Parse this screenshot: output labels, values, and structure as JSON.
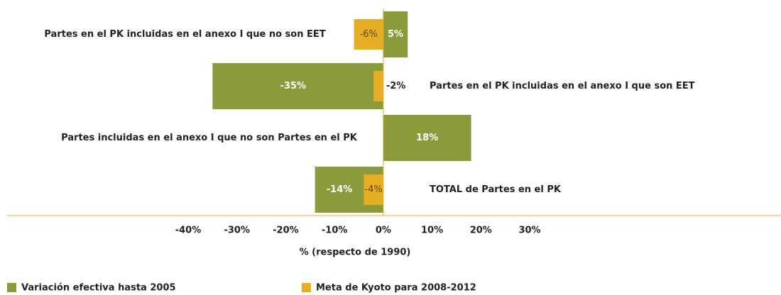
{
  "chart_data": {
    "type": "bar",
    "orientation": "horizontal",
    "x_label": "% (respecto de 1990)",
    "categories": [
      "Partes en el PK incluidas en el anexo I que no son EET",
      "Partes en el PK incluidas en el anexo I que son EET",
      "Partes incluidas en el anexo I que no son Partes en el PK",
      "TOTAL de Partes en el PK"
    ],
    "series": [
      {
        "name": "Variación efectiva hasta 2005",
        "color": "#8c9a3c",
        "values": [
          5,
          -35,
          18,
          -14
        ],
        "value_labels": [
          "5%",
          "-35%",
          "18%",
          "-14%"
        ]
      },
      {
        "name": "Meta de Kyoto para 2008-2012",
        "color": "#e6ae22",
        "values": [
          -6,
          -2,
          null,
          -4
        ],
        "value_labels": [
          "-6%",
          "-2%",
          null,
          "-4%"
        ]
      }
    ],
    "xlim": [
      -40,
      30
    ],
    "xticks": [
      {
        "value": -40,
        "label": "-40%"
      },
      {
        "value": -30,
        "label": "-30%"
      },
      {
        "value": -20,
        "label": "-20%"
      },
      {
        "value": -10,
        "label": "-10%"
      },
      {
        "value": 0,
        "label": "0%"
      },
      {
        "value": 10,
        "label": "10%"
      },
      {
        "value": 20,
        "label": "20%"
      },
      {
        "value": 30,
        "label": "30%"
      }
    ],
    "legend": "bottom-left"
  }
}
